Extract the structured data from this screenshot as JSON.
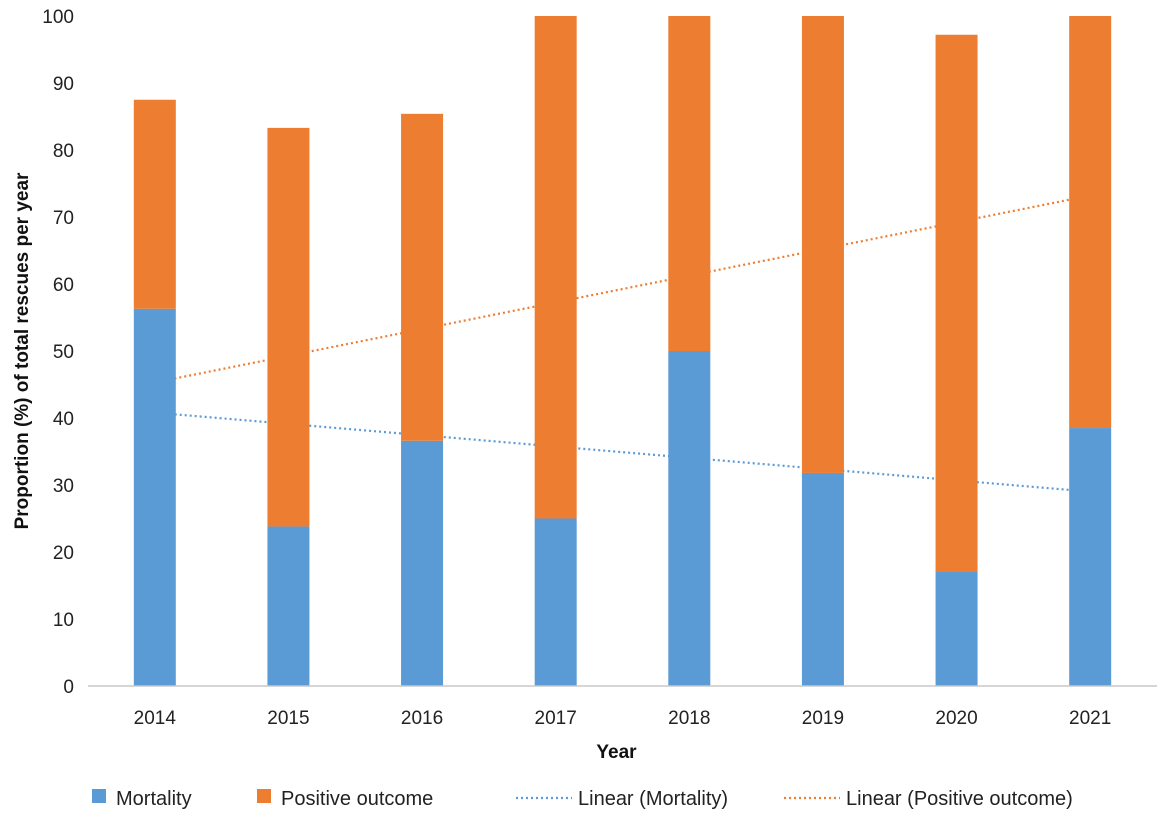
{
  "chart_data": {
    "type": "bar",
    "stacked": true,
    "categories": [
      "2014",
      "2015",
      "2016",
      "2017",
      "2018",
      "2019",
      "2020",
      "2021"
    ],
    "series": [
      {
        "name": "Mortality",
        "color": "#5b9bd5",
        "values": [
          56.3,
          23.8,
          36.6,
          25.0,
          50.0,
          31.8,
          17.1,
          38.5
        ]
      },
      {
        "name": "Positive outcome",
        "color": "#ed7d31",
        "values": [
          31.2,
          59.5,
          48.8,
          75.0,
          50.0,
          68.2,
          80.1,
          61.5
        ]
      }
    ],
    "trendlines": [
      {
        "name": "Linear (Mortality)",
        "color": "#5b9bd5",
        "start": 40.8,
        "end": 29.0
      },
      {
        "name": "Linear (Positive outcome)",
        "color": "#ed7d31",
        "start": 45.3,
        "end": 73.2
      }
    ],
    "title": "",
    "xlabel": "Year",
    "ylabel": "Proportion (%) of total rescues per year",
    "ylim": [
      0,
      100
    ],
    "yticks": [
      "0",
      "10",
      "20",
      "30",
      "40",
      "50",
      "60",
      "70",
      "80",
      "90",
      "100"
    ],
    "grid": false,
    "legend_position": "bottom"
  }
}
